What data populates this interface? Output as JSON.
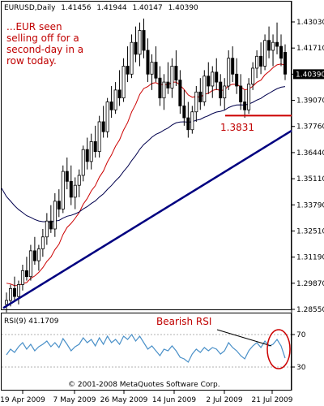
{
  "chart_data": [
    {
      "type": "candlestick",
      "header": {
        "symbol": "EURUSD,Daily",
        "open": "1.41456",
        "high": "1.41944",
        "low": "1.40147",
        "close": "1.40390"
      },
      "y_ticks": [
        "1.43030",
        "1.41710",
        "1.40390",
        "1.39070",
        "1.37760",
        "1.36440",
        "1.35110",
        "1.33790",
        "1.32510",
        "1.31190",
        "1.29870",
        "1.28550"
      ],
      "last_price": 1.4039,
      "x_ticks": [
        "19 Apr 2009",
        "7 May 2009",
        "26 May 2009",
        "14 Jun 2009",
        "2 Jul 2009",
        "21 Jul 2009"
      ],
      "ylim": [
        1.2855,
        1.4303
      ],
      "candles": [
        [
          1.288,
          1.294,
          1.284,
          1.29
        ],
        [
          1.29,
          1.298,
          1.287,
          1.296
        ],
        [
          1.296,
          1.302,
          1.29,
          1.292
        ],
        [
          1.292,
          1.3,
          1.288,
          1.298
        ],
        [
          1.298,
          1.308,
          1.295,
          1.305
        ],
        [
          1.305,
          1.312,
          1.3,
          1.302
        ],
        [
          1.302,
          1.318,
          1.3,
          1.315
        ],
        [
          1.315,
          1.322,
          1.308,
          1.31
        ],
        [
          1.31,
          1.318,
          1.305,
          1.316
        ],
        [
          1.316,
          1.326,
          1.312,
          1.322
        ],
        [
          1.322,
          1.334,
          1.318,
          1.33
        ],
        [
          1.33,
          1.338,
          1.324,
          1.326
        ],
        [
          1.326,
          1.344,
          1.322,
          1.34
        ],
        [
          1.34,
          1.346,
          1.332,
          1.336
        ],
        [
          1.336,
          1.358,
          1.334,
          1.355
        ],
        [
          1.355,
          1.362,
          1.346,
          1.35
        ],
        [
          1.35,
          1.358,
          1.338,
          1.342
        ],
        [
          1.342,
          1.352,
          1.336,
          1.348
        ],
        [
          1.348,
          1.356,
          1.342,
          1.353
        ],
        [
          1.353,
          1.368,
          1.35,
          1.366
        ],
        [
          1.366,
          1.372,
          1.356,
          1.36
        ],
        [
          1.36,
          1.374,
          1.356,
          1.37
        ],
        [
          1.37,
          1.378,
          1.362,
          1.365
        ],
        [
          1.365,
          1.383,
          1.362,
          1.38
        ],
        [
          1.38,
          1.388,
          1.372,
          1.375
        ],
        [
          1.375,
          1.392,
          1.372,
          1.39
        ],
        [
          1.39,
          1.398,
          1.382,
          1.386
        ],
        [
          1.386,
          1.4,
          1.384,
          1.396
        ],
        [
          1.396,
          1.406,
          1.388,
          1.392
        ],
        [
          1.392,
          1.412,
          1.39,
          1.408
        ],
        [
          1.408,
          1.418,
          1.4,
          1.404
        ],
        [
          1.404,
          1.424,
          1.402,
          1.42
        ],
        [
          1.42,
          1.428,
          1.41,
          1.414
        ],
        [
          1.414,
          1.43,
          1.408,
          1.426
        ],
        [
          1.426,
          1.432,
          1.412,
          1.416
        ],
        [
          1.416,
          1.422,
          1.4,
          1.404
        ],
        [
          1.404,
          1.414,
          1.396,
          1.41
        ],
        [
          1.41,
          1.418,
          1.4,
          1.402
        ],
        [
          1.402,
          1.408,
          1.388,
          1.392
        ],
        [
          1.392,
          1.404,
          1.386,
          1.4
        ],
        [
          1.4,
          1.41,
          1.394,
          1.397
        ],
        [
          1.397,
          1.412,
          1.392,
          1.408
        ],
        [
          1.408,
          1.416,
          1.398,
          1.401
        ],
        [
          1.401,
          1.406,
          1.384,
          1.388
        ],
        [
          1.388,
          1.396,
          1.378,
          1.382
        ],
        [
          1.382,
          1.39,
          1.372,
          1.376
        ],
        [
          1.376,
          1.388,
          1.374,
          1.385
        ],
        [
          1.385,
          1.398,
          1.38,
          1.395
        ],
        [
          1.395,
          1.402,
          1.386,
          1.39
        ],
        [
          1.39,
          1.406,
          1.388,
          1.403
        ],
        [
          1.403,
          1.41,
          1.394,
          1.398
        ],
        [
          1.398,
          1.408,
          1.392,
          1.405
        ],
        [
          1.405,
          1.412,
          1.396,
          1.4
        ],
        [
          1.4,
          1.404,
          1.388,
          1.392
        ],
        [
          1.392,
          1.402,
          1.386,
          1.398
        ],
        [
          1.398,
          1.416,
          1.396,
          1.412
        ],
        [
          1.412,
          1.418,
          1.4,
          1.404
        ],
        [
          1.404,
          1.412,
          1.394,
          1.398
        ],
        [
          1.398,
          1.404,
          1.386,
          1.39
        ],
        [
          1.39,
          1.396,
          1.382,
          1.386
        ],
        [
          1.386,
          1.402,
          1.384,
          1.399
        ],
        [
          1.399,
          1.41,
          1.396,
          1.407
        ],
        [
          1.407,
          1.416,
          1.402,
          1.413
        ],
        [
          1.413,
          1.42,
          1.404,
          1.408
        ],
        [
          1.408,
          1.424,
          1.406,
          1.421
        ],
        [
          1.421,
          1.428,
          1.412,
          1.416
        ],
        [
          1.416,
          1.424,
          1.408,
          1.42
        ],
        [
          1.42,
          1.43,
          1.414,
          1.418
        ],
        [
          1.418,
          1.424,
          1.408,
          1.412
        ],
        [
          1.415,
          1.419,
          1.401,
          1.404
        ]
      ],
      "support_level": "1.3831",
      "annotation": "...EUR seen selling off for a second-day in a row today.",
      "rsi_header": "RSI(9) 41.1709",
      "rsi_ticks": [
        "70",
        "30"
      ],
      "rsi_annotation": "Bearish RSI",
      "rsi_values": [
        45,
        52,
        48,
        55,
        60,
        52,
        58,
        50,
        55,
        58,
        62,
        55,
        60,
        54,
        65,
        58,
        50,
        55,
        58,
        66,
        60,
        64,
        56,
        66,
        58,
        68,
        60,
        64,
        58,
        68,
        64,
        70,
        62,
        68,
        60,
        52,
        56,
        50,
        44,
        52,
        50,
        56,
        50,
        42,
        40,
        36,
        46,
        52,
        48,
        54,
        50,
        54,
        52,
        46,
        50,
        60,
        54,
        50,
        44,
        40,
        50,
        56,
        60,
        54,
        62,
        56,
        58,
        64,
        56,
        41
      ],
      "copyright": "© 2001-2008 MetaQuotes Software Corp.",
      "colors": {
        "bull": "#ffffff",
        "bear": "#000000",
        "ma_fast": "#cc0000",
        "ma_slow": "#00004d",
        "trendline": "#000080",
        "support": "#cc0000",
        "rsi": "#4a90c8"
      }
    }
  ]
}
